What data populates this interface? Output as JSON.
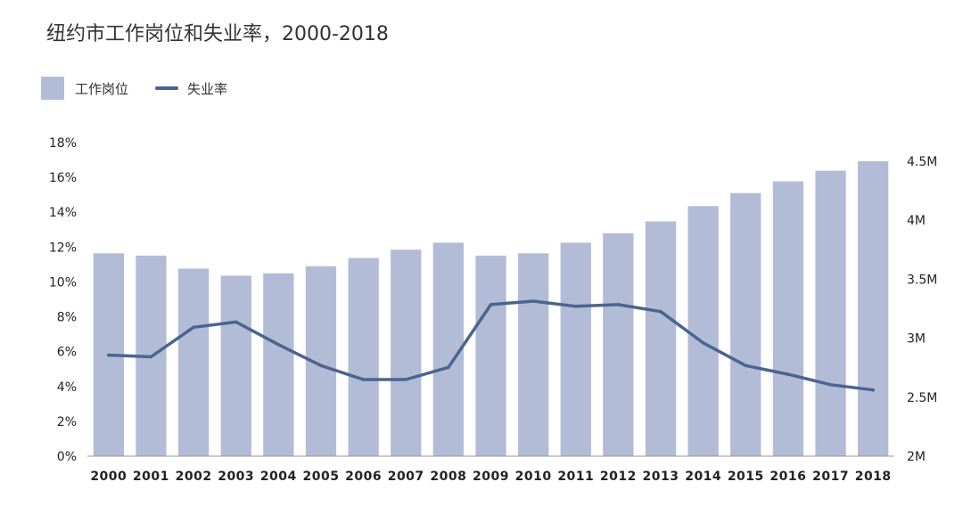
{
  "title": "纽约市工作岗位和失业率，2000-2018",
  "legend": {
    "bar_label": "工作岗位",
    "line_label": "失业率"
  },
  "colors": {
    "bar": "#b3bcd6",
    "line": "#4b6490",
    "axis": "#999999"
  },
  "chart_data": {
    "type": "bar",
    "title": "纽约市工作岗位和失业率，2000-2018",
    "categories": [
      "2000",
      "2001",
      "2002",
      "2003",
      "2004",
      "2005",
      "2006",
      "2007",
      "2008",
      "2009",
      "2010",
      "2011",
      "2012",
      "2013",
      "2014",
      "2015",
      "2016",
      "2017",
      "2018"
    ],
    "series": [
      {
        "name": "工作岗位",
        "type": "bar",
        "axis": "right",
        "values": [
          3.72,
          3.7,
          3.59,
          3.53,
          3.55,
          3.61,
          3.68,
          3.75,
          3.81,
          3.7,
          3.72,
          3.81,
          3.89,
          3.99,
          4.12,
          4.23,
          4.33,
          4.42,
          4.5
        ]
      },
      {
        "name": "失业率",
        "type": "line",
        "axis": "left",
        "values": [
          5.8,
          5.7,
          7.4,
          7.7,
          6.4,
          5.2,
          4.4,
          4.4,
          5.1,
          8.7,
          8.9,
          8.6,
          8.7,
          8.3,
          6.5,
          5.2,
          4.7,
          4.1,
          3.8
        ]
      }
    ],
    "y_left": {
      "ticks": [
        "0%",
        "2%",
        "4%",
        "6%",
        "8%",
        "10%",
        "12%",
        "14%",
        "16%",
        "18%"
      ],
      "ylim": [
        0,
        18
      ]
    },
    "y_right": {
      "ticks": [
        "2M",
        "2.5M",
        "3M",
        "3.5M",
        "4M",
        "4.5M"
      ],
      "ylim": [
        2,
        4.5
      ]
    },
    "grid": false,
    "legend_position": "top-left"
  }
}
